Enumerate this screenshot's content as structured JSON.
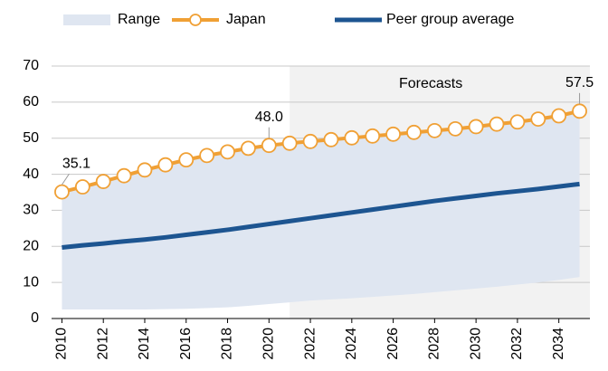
{
  "chart_data": {
    "type": "line",
    "x": [
      2010,
      2011,
      2012,
      2013,
      2014,
      2015,
      2016,
      2017,
      2018,
      2019,
      2020,
      2021,
      2022,
      2023,
      2024,
      2025,
      2026,
      2027,
      2028,
      2029,
      2030,
      2031,
      2032,
      2033,
      2034,
      2035
    ],
    "xlim": [
      2009.5,
      2035.5
    ],
    "xticks": [
      2010,
      2012,
      2014,
      2016,
      2018,
      2020,
      2022,
      2024,
      2026,
      2028,
      2030,
      2032,
      2034
    ],
    "ylim": [
      0,
      70
    ],
    "yticks": [
      0,
      10,
      20,
      30,
      40,
      50,
      60,
      70
    ],
    "grid": true,
    "forecast_start": 2021,
    "forecast_label": "Forecasts",
    "series": [
      {
        "name": "Range",
        "color": "#dfe6f1",
        "lower": [
          2.5,
          2.5,
          2.5,
          2.5,
          2.5,
          2.6,
          2.7,
          2.9,
          3.1,
          3.5,
          4.0,
          4.5,
          5.0,
          5.3,
          5.6,
          6.0,
          6.4,
          6.8,
          7.3,
          7.8,
          8.3,
          8.8,
          9.4,
          10.0,
          10.7,
          11.5
        ],
        "upper": [
          34.8,
          36.2,
          37.7,
          39.3,
          40.9,
          42.3,
          43.7,
          44.9,
          45.9,
          46.9,
          47.7,
          48.3,
          48.8,
          49.3,
          49.8,
          50.3,
          50.8,
          51.3,
          51.8,
          52.3,
          52.9,
          53.6,
          54.2,
          55.0,
          55.9,
          57.2
        ]
      },
      {
        "name": "Japan",
        "color": "#f0a035",
        "marker": "circle",
        "values": [
          35.1,
          36.5,
          38.0,
          39.6,
          41.2,
          42.6,
          44.0,
          45.2,
          46.2,
          47.2,
          48.0,
          48.6,
          49.1,
          49.6,
          50.1,
          50.6,
          51.1,
          51.6,
          52.1,
          52.6,
          53.2,
          53.9,
          54.5,
          55.3,
          56.2,
          57.5
        ],
        "value_labels": [
          "35.1",
          null,
          null,
          null,
          null,
          null,
          null,
          null,
          null,
          null,
          "48.0",
          null,
          null,
          null,
          null,
          null,
          null,
          null,
          null,
          null,
          null,
          null,
          null,
          null,
          null,
          "57.5"
        ]
      },
      {
        "name": "Peer group average",
        "color": "#1d5591",
        "values": [
          19.7,
          20.3,
          20.8,
          21.4,
          21.9,
          22.5,
          23.2,
          23.9,
          24.6,
          25.4,
          26.2,
          27.0,
          27.8,
          28.6,
          29.4,
          30.2,
          31.0,
          31.8,
          32.6,
          33.3,
          34.0,
          34.7,
          35.3,
          35.9,
          36.6,
          37.3
        ]
      }
    ]
  }
}
